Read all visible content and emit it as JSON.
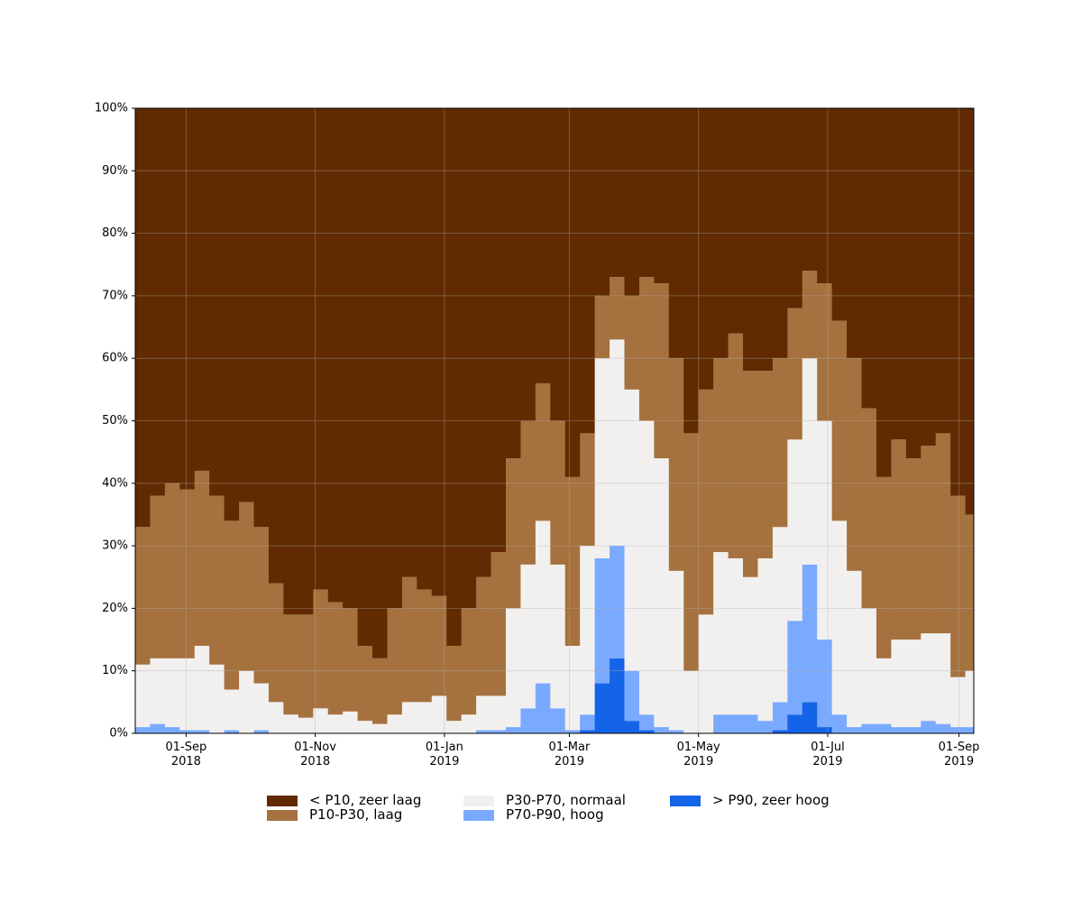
{
  "chart_data": {
    "type": "stacked-step-area",
    "x": [
      "2018-08-08",
      "2018-08-15",
      "2018-08-22",
      "2018-08-29",
      "2018-09-05",
      "2018-09-12",
      "2018-09-19",
      "2018-09-26",
      "2018-10-03",
      "2018-10-10",
      "2018-10-17",
      "2018-10-24",
      "2018-10-31",
      "2018-11-07",
      "2018-11-14",
      "2018-11-21",
      "2018-11-28",
      "2018-12-05",
      "2018-12-12",
      "2018-12-19",
      "2018-12-26",
      "2019-01-02",
      "2019-01-09",
      "2019-01-16",
      "2019-01-23",
      "2019-01-30",
      "2019-02-06",
      "2019-02-13",
      "2019-02-20",
      "2019-02-27",
      "2019-03-06",
      "2019-03-13",
      "2019-03-20",
      "2019-03-27",
      "2019-04-03",
      "2019-04-10",
      "2019-04-17",
      "2019-04-24",
      "2019-05-01",
      "2019-05-08",
      "2019-05-15",
      "2019-05-22",
      "2019-05-29",
      "2019-06-05",
      "2019-06-12",
      "2019-06-19",
      "2019-06-26",
      "2019-07-03",
      "2019-07-10",
      "2019-07-17",
      "2019-07-24",
      "2019-07-31",
      "2019-08-07",
      "2019-08-14",
      "2019-08-21",
      "2019-08-28",
      "2019-09-04"
    ],
    "series": [
      {
        "name": "< P10, zeer laag",
        "color": "#612a00",
        "values": [
          67,
          62,
          60,
          61,
          58,
          62,
          66,
          63,
          67,
          76,
          81,
          81,
          77,
          79,
          80,
          86,
          88,
          80,
          75,
          77,
          78,
          86,
          80,
          75,
          71,
          56,
          50,
          44,
          50,
          59,
          52,
          30,
          27,
          30,
          27,
          28,
          40,
          52,
          45,
          40,
          36,
          42,
          42,
          40,
          32,
          26,
          28,
          34,
          40,
          48,
          59,
          53,
          56,
          54,
          52,
          62,
          65
        ]
      },
      {
        "name": "P10-P30, laag",
        "color": "#a5713e",
        "values": [
          22,
          26,
          28,
          27,
          28,
          27,
          27,
          27,
          25,
          19,
          16,
          16.5,
          19,
          18,
          16.5,
          12,
          10.5,
          17,
          20,
          18,
          16,
          12,
          17,
          19,
          23,
          24,
          23,
          22,
          23,
          27,
          18,
          10,
          10,
          15,
          23,
          28,
          34,
          38,
          36,
          31,
          36,
          33,
          30,
          27,
          21,
          14,
          22,
          32,
          34,
          32,
          29,
          32,
          29,
          30,
          32,
          29,
          25
        ]
      },
      {
        "name": "P30-P70, normaal",
        "color": "#f2f0ef",
        "values": [
          10,
          10.5,
          11,
          11.5,
          13.5,
          11,
          6.5,
          10,
          7.5,
          5,
          3,
          2.5,
          4,
          3,
          3.5,
          2,
          1.5,
          3,
          5,
          5,
          6,
          2,
          3,
          5.5,
          5.5,
          19,
          23,
          26,
          23,
          13.5,
          27,
          32,
          33,
          45,
          47,
          43,
          25.5,
          10,
          19,
          26,
          25,
          22,
          26,
          28,
          29,
          33,
          35,
          31,
          25,
          18.5,
          10.5,
          14,
          14,
          14,
          14.5,
          8,
          9
        ]
      },
      {
        "name": "P70-P90, hoog",
        "color": "#7aaaff",
        "values": [
          1,
          1.5,
          1,
          0.5,
          0.5,
          0,
          0.5,
          0,
          0.5,
          0,
          0,
          0,
          0,
          0,
          0,
          0,
          0,
          0,
          0,
          0,
          0,
          0,
          0,
          0.5,
          0.5,
          1,
          4,
          8,
          4,
          0.5,
          2.5,
          20,
          18,
          8,
          2.5,
          1,
          0.5,
          0,
          0,
          3,
          3,
          3,
          2,
          4.5,
          15,
          22,
          14,
          3,
          1,
          1.5,
          1.5,
          1,
          1,
          2,
          1.5,
          1,
          1
        ]
      },
      {
        "name": "> P90, zeer hoog",
        "color": "#1464e8",
        "values": [
          0,
          0,
          0,
          0,
          0,
          0,
          0,
          0,
          0,
          0,
          0,
          0,
          0,
          0,
          0,
          0,
          0,
          0,
          0,
          0,
          0,
          0,
          0,
          0,
          0,
          0,
          0,
          0,
          0,
          0,
          0.5,
          8,
          12,
          2,
          0.5,
          0,
          0,
          0,
          0,
          0,
          0,
          0,
          0,
          0.5,
          3,
          5,
          1,
          0,
          0,
          0,
          0,
          0,
          0,
          0,
          0,
          0,
          0
        ]
      }
    ],
    "xlim": [
      "2018-08-08",
      "2019-09-08"
    ],
    "xticks": [
      {
        "value": "2018-09-01",
        "label": "01-Sep\n2018"
      },
      {
        "value": "2018-11-01",
        "label": "01-Nov\n2018"
      },
      {
        "value": "2019-01-01",
        "label": "01-Jan\n2019"
      },
      {
        "value": "2019-03-01",
        "label": "01-Mar\n2019"
      },
      {
        "value": "2019-05-01",
        "label": "01-May\n2019"
      },
      {
        "value": "2019-07-01",
        "label": "01-Jul\n2019"
      },
      {
        "value": "2019-09-01",
        "label": "01-Sep\n2019"
      }
    ],
    "ylim": [
      0,
      100
    ],
    "yticks": [
      {
        "value": 0,
        "label": "0%"
      },
      {
        "value": 10,
        "label": "10%"
      },
      {
        "value": 20,
        "label": "20%"
      },
      {
        "value": 30,
        "label": "30%"
      },
      {
        "value": 40,
        "label": "40%"
      },
      {
        "value": 50,
        "label": "50%"
      },
      {
        "value": 60,
        "label": "60%"
      },
      {
        "value": 70,
        "label": "70%"
      },
      {
        "value": 80,
        "label": "80%"
      },
      {
        "value": 90,
        "label": "90%"
      },
      {
        "value": 100,
        "label": "100%"
      }
    ],
    "grid": true,
    "legend": "bottom"
  }
}
